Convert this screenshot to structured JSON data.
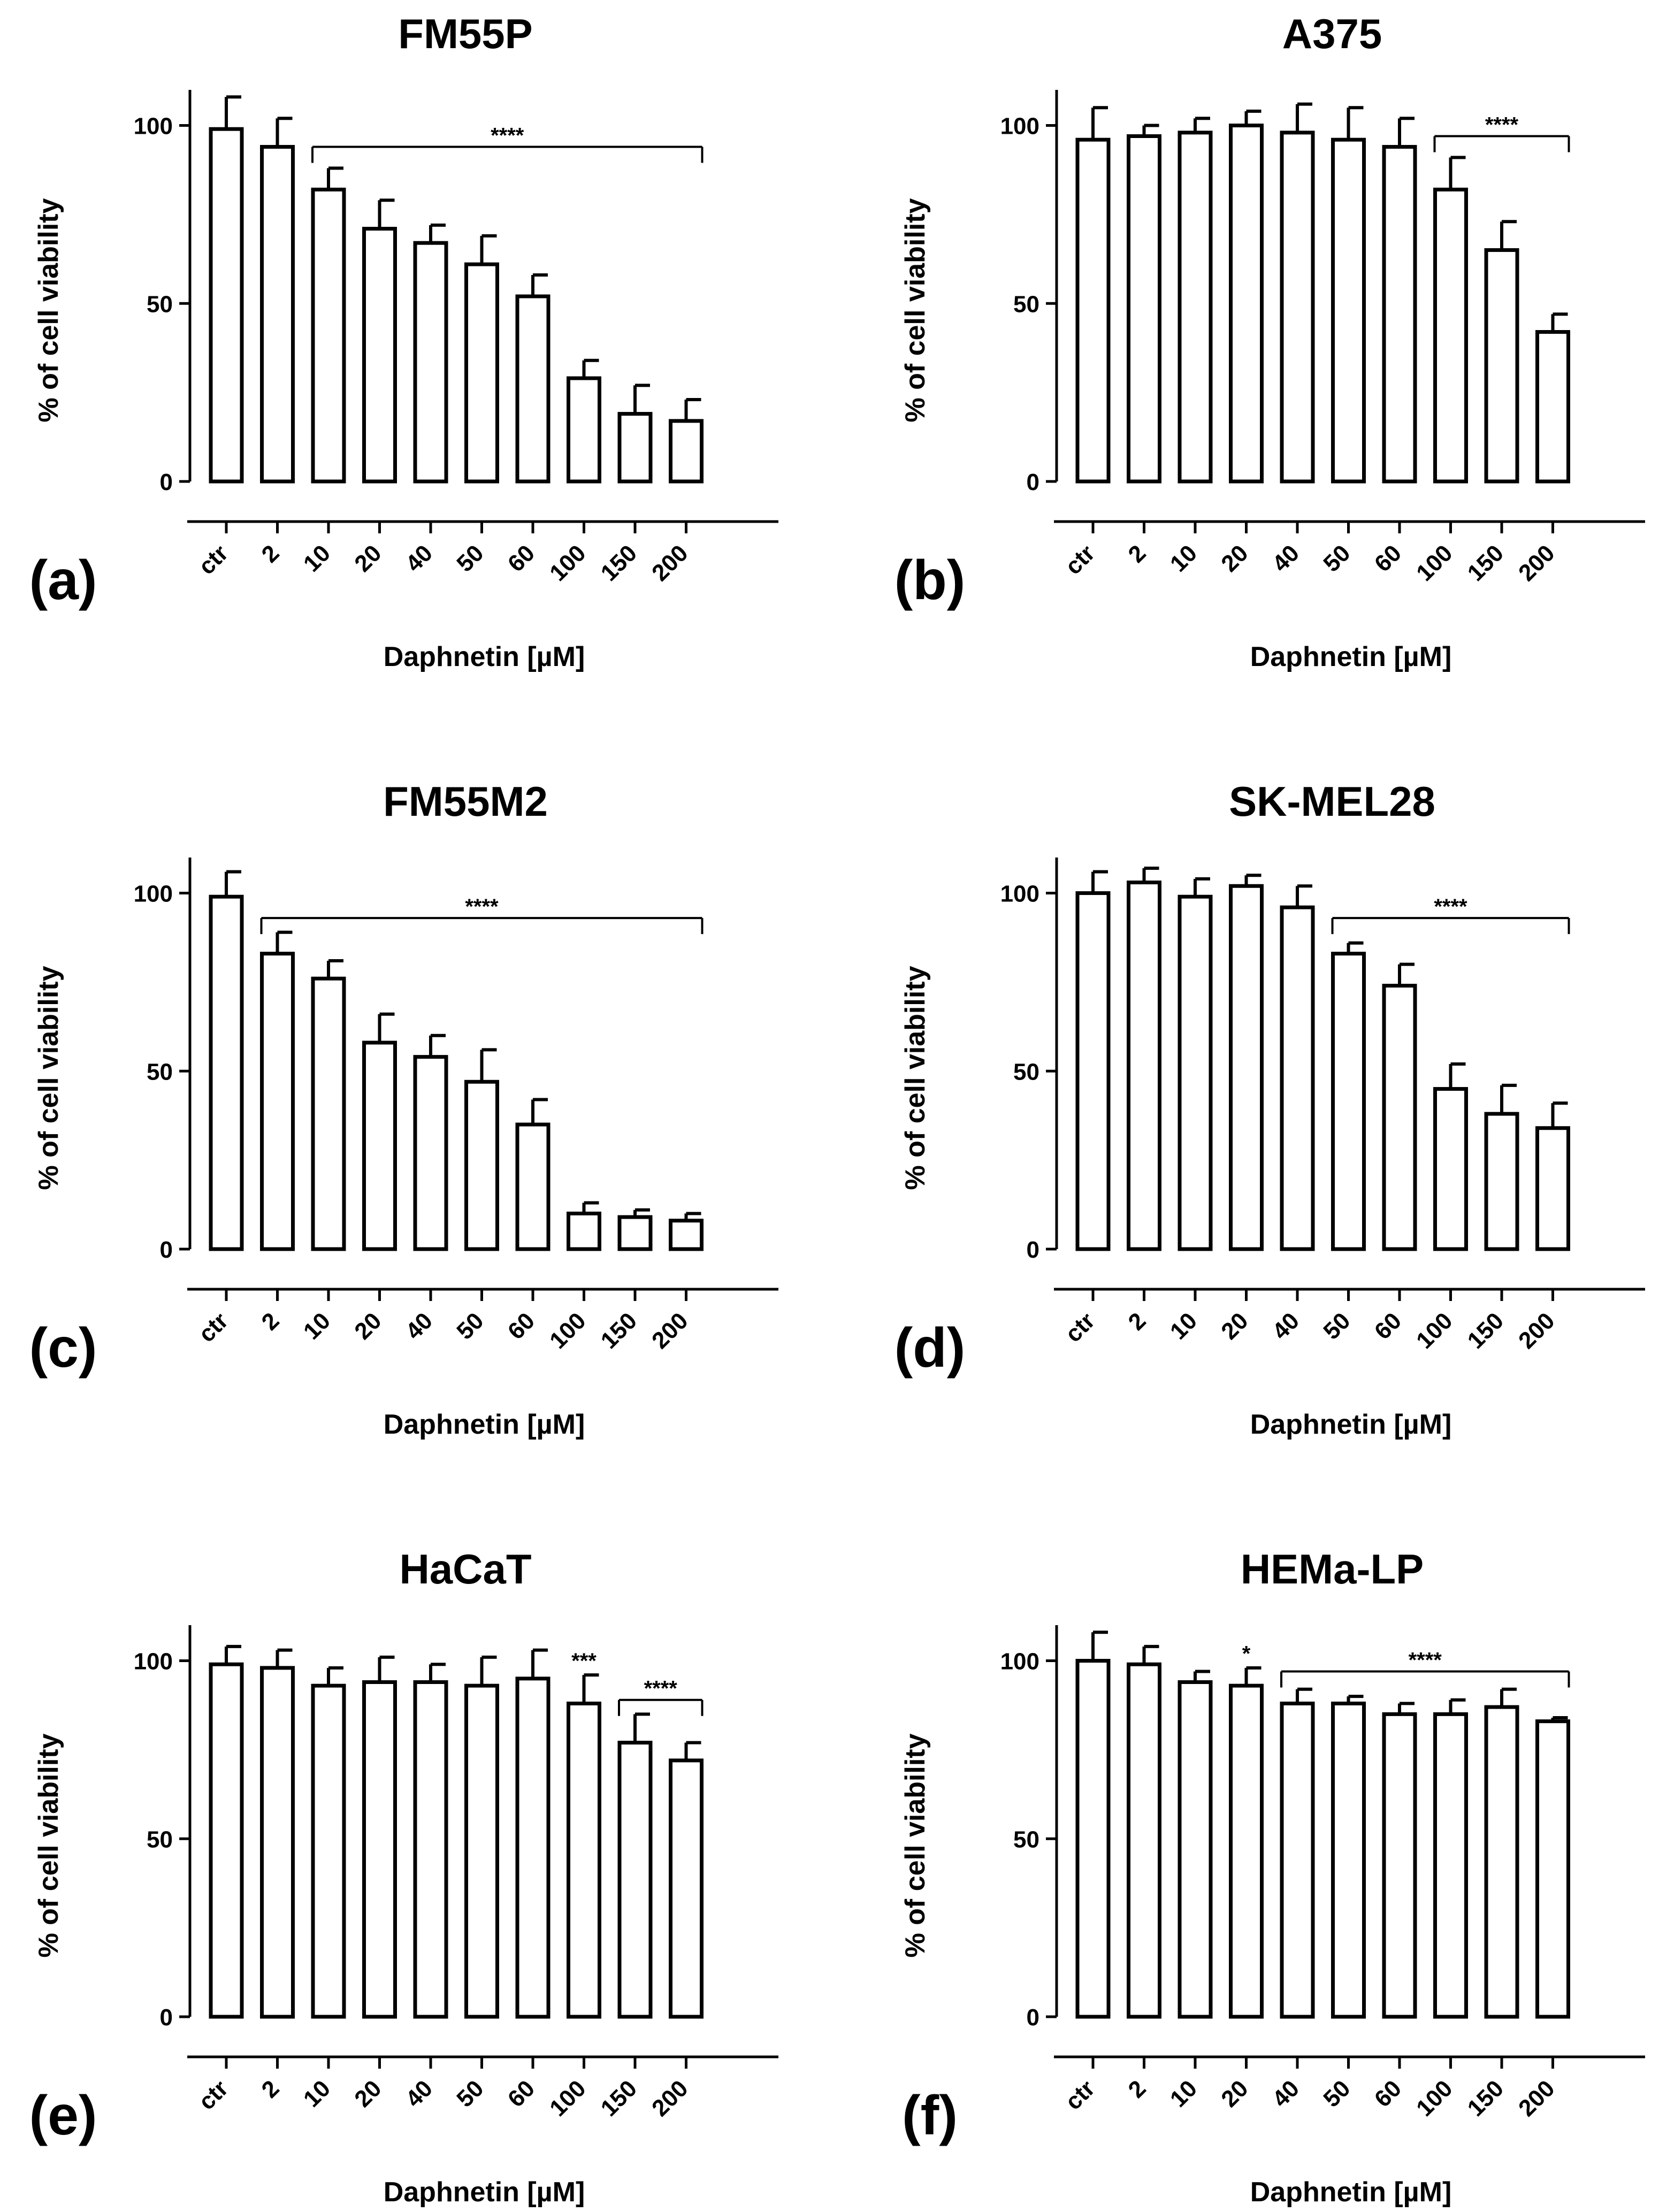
{
  "figure": {
    "x_label": "Daphnetin [µM]",
    "y_label": "% of cell viability"
  },
  "chart_data": [
    {
      "type": "bar",
      "panel": "(a)",
      "title": "FM55P",
      "xlabel": "Daphnetin [µM]",
      "ylabel": "% of cell viability",
      "categories": [
        "ctr",
        "2",
        "10",
        "20",
        "40",
        "50",
        "60",
        "100",
        "150",
        "200"
      ],
      "values": [
        99,
        94,
        82,
        71,
        67,
        61,
        52,
        29,
        19,
        17
      ],
      "errors": [
        9,
        8,
        6,
        8,
        5,
        8,
        6,
        5,
        8,
        6
      ],
      "ylim": [
        0,
        110
      ],
      "yticks": [
        0,
        50,
        100
      ],
      "significance": [
        {
          "from": 2,
          "to": 9,
          "label": "****",
          "y": 94
        }
      ]
    },
    {
      "type": "bar",
      "panel": "(b)",
      "title": "A375",
      "xlabel": "Daphnetin [µM]",
      "ylabel": "% of cell viability",
      "categories": [
        "ctr",
        "2",
        "10",
        "20",
        "40",
        "50",
        "60",
        "100",
        "150",
        "200"
      ],
      "values": [
        96,
        97,
        98,
        100,
        98,
        96,
        94,
        82,
        65,
        42
      ],
      "errors": [
        9,
        3,
        4,
        4,
        8,
        9,
        8,
        9,
        8,
        5
      ],
      "ylim": [
        0,
        110
      ],
      "yticks": [
        0,
        50,
        100
      ],
      "significance": [
        {
          "from": 7,
          "to": 9,
          "label": "****",
          "y": 97
        }
      ]
    },
    {
      "type": "bar",
      "panel": "(c)",
      "title": "FM55M2",
      "xlabel": "Daphnetin [µM]",
      "ylabel": "% of cell viability",
      "categories": [
        "ctr",
        "2",
        "10",
        "20",
        "40",
        "50",
        "60",
        "100",
        "150",
        "200"
      ],
      "values": [
        99,
        83,
        76,
        58,
        54,
        47,
        35,
        10,
        9,
        8
      ],
      "errors": [
        7,
        6,
        5,
        8,
        6,
        9,
        7,
        3,
        2,
        2
      ],
      "ylim": [
        0,
        110
      ],
      "yticks": [
        0,
        50,
        100
      ],
      "significance": [
        {
          "from": 1,
          "to": 9,
          "label": "****",
          "y": 93
        }
      ]
    },
    {
      "type": "bar",
      "panel": "(d)",
      "title": "SK-MEL28",
      "xlabel": "Daphnetin [µM]",
      "ylabel": "% of cell viability",
      "categories": [
        "ctr",
        "2",
        "10",
        "20",
        "40",
        "50",
        "60",
        "100",
        "150",
        "200"
      ],
      "values": [
        100,
        103,
        99,
        102,
        96,
        83,
        74,
        45,
        38,
        34
      ],
      "errors": [
        6,
        4,
        5,
        3,
        6,
        3,
        6,
        7,
        8,
        7
      ],
      "ylim": [
        0,
        110
      ],
      "yticks": [
        0,
        50,
        100
      ],
      "significance": [
        {
          "from": 5,
          "to": 9,
          "label": "****",
          "y": 93
        }
      ]
    },
    {
      "type": "bar",
      "panel": "(e)",
      "title": "HaCaT",
      "xlabel": "Daphnetin [µM]",
      "ylabel": "% of cell viability",
      "categories": [
        "ctr",
        "2",
        "10",
        "20",
        "40",
        "50",
        "60",
        "100",
        "150",
        "200"
      ],
      "values": [
        99,
        98,
        93,
        94,
        94,
        93,
        95,
        88,
        77,
        72
      ],
      "errors": [
        5,
        5,
        5,
        7,
        5,
        8,
        8,
        8,
        8,
        5
      ],
      "ylim": [
        0,
        110
      ],
      "yticks": [
        0,
        50,
        100
      ],
      "significance": [
        {
          "at": 7,
          "label": "***",
          "y": 98
        },
        {
          "from": 8,
          "to": 9,
          "label": "****",
          "y": 89
        }
      ]
    },
    {
      "type": "bar",
      "panel": "(f)",
      "title": "HEMa-LP",
      "xlabel": "Daphnetin [µM]",
      "ylabel": "% of cell viability",
      "categories": [
        "ctr",
        "2",
        "10",
        "20",
        "40",
        "50",
        "60",
        "100",
        "150",
        "200"
      ],
      "values": [
        100,
        99,
        94,
        93,
        88,
        88,
        85,
        85,
        87,
        83
      ],
      "errors": [
        8,
        5,
        3,
        5,
        4,
        2,
        3,
        4,
        5,
        1
      ],
      "ylim": [
        0,
        110
      ],
      "yticks": [
        0,
        50,
        100
      ],
      "significance": [
        {
          "at": 3,
          "label": "*",
          "y": 100
        },
        {
          "from": 4,
          "to": 9,
          "label": "****",
          "y": 97
        }
      ]
    }
  ]
}
